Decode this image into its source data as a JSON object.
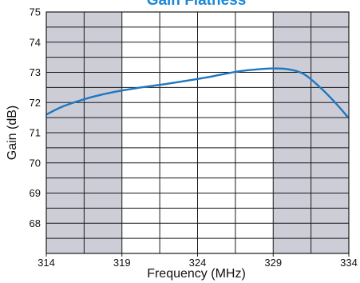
{
  "chart_data": {
    "type": "line",
    "title": "Gain Flatness",
    "xlabel": "Frequency (MHz)",
    "ylabel": "Gain (dB)",
    "xlim": [
      314,
      334
    ],
    "ylim": [
      67,
      75
    ],
    "x_ticks": [
      314,
      319,
      324,
      329,
      334
    ],
    "y_ticks": [
      68,
      69,
      70,
      71,
      72,
      73,
      74,
      75
    ],
    "grid": true,
    "shaded_x_ranges": [
      [
        314,
        319
      ],
      [
        329,
        334
      ]
    ],
    "series": [
      {
        "x": [
          314,
          315,
          316,
          317,
          318,
          319,
          320,
          321,
          322,
          323,
          324,
          325,
          326,
          327,
          328,
          329,
          330,
          331,
          332,
          333,
          334
        ],
        "y": [
          71.6,
          71.85,
          72.03,
          72.18,
          72.3,
          72.4,
          72.48,
          72.55,
          72.62,
          72.7,
          72.78,
          72.87,
          72.97,
          73.05,
          73.1,
          73.13,
          73.1,
          72.95,
          72.55,
          72.05,
          71.48
        ]
      }
    ],
    "colors": {
      "line": "#1f77bf",
      "title": "#1a88d8",
      "shade": "#cdcdd8",
      "grid": "#1a1a1a"
    }
  }
}
